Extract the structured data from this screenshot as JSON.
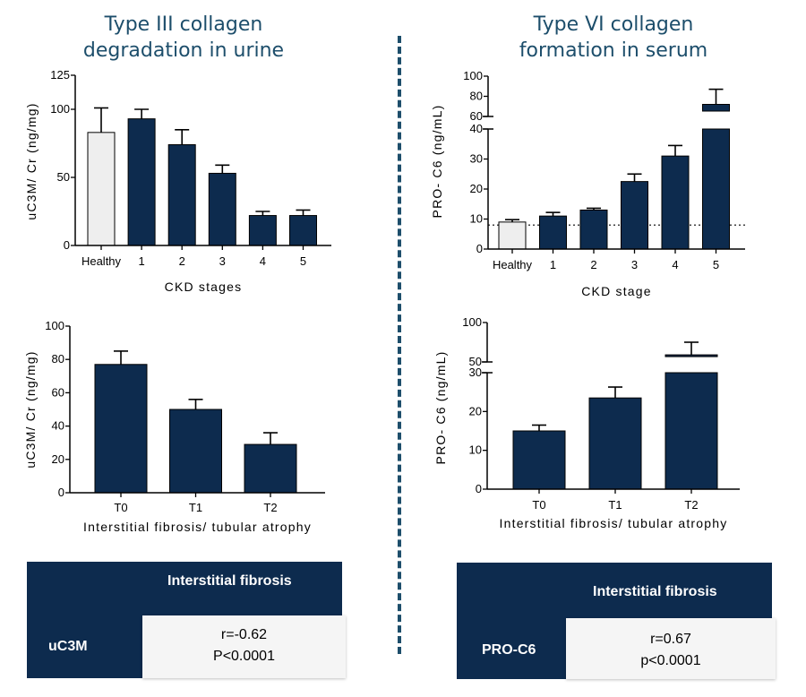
{
  "left_title": [
    "Type III collagen",
    "degradation in urine"
  ],
  "right_title": [
    "Type VI collagen",
    "formation in serum"
  ],
  "colors": {
    "navy": "#0d2b4e",
    "healthy": "#eeeeee",
    "title": "#1d4e6b"
  },
  "chart_data": [
    {
      "id": "uc3m_ckd",
      "type": "bar",
      "title": "",
      "ylabel": "uC3M/ Cr (ng/mg)",
      "xlabel": "CKD stages",
      "categories": [
        "Healthy",
        "1",
        "2",
        "3",
        "4",
        "5"
      ],
      "values": [
        83,
        93,
        74,
        53,
        22,
        22
      ],
      "errors": [
        18,
        7,
        11,
        6,
        3,
        4
      ],
      "ylim": [
        0,
        125
      ],
      "yticks": [
        0,
        50,
        100,
        125
      ],
      "highlight_first": true
    },
    {
      "id": "proc6_ckd",
      "type": "bar",
      "title": "",
      "ylabel": "PRO- C6 (ng/mL)",
      "xlabel": "CKD stage",
      "categories": [
        "Healthy",
        "1",
        "2",
        "3",
        "4",
        "5"
      ],
      "values": [
        9,
        11,
        13,
        22.5,
        31,
        72
      ],
      "errors": [
        0.8,
        1.2,
        0.6,
        2.5,
        3.5,
        15
      ],
      "ylim": [
        0,
        100
      ],
      "axis_break": {
        "lower": [
          0,
          40
        ],
        "upper": [
          60,
          100
        ]
      },
      "yticks_lower": [
        0,
        10,
        20,
        30,
        40
      ],
      "yticks_upper": [
        60,
        80,
        100
      ],
      "reference_line": 8,
      "highlight_first": true
    },
    {
      "id": "uc3m_fibrosis",
      "type": "bar",
      "title": "",
      "ylabel": "uC3M/ Cr (ng/mg)",
      "xlabel": "Interstitial fibrosis/ tubular atrophy",
      "categories": [
        "T0",
        "T1",
        "T2"
      ],
      "values": [
        77,
        50,
        29
      ],
      "errors": [
        8,
        6,
        7
      ],
      "ylim": [
        0,
        100
      ],
      "yticks": [
        0,
        20,
        40,
        60,
        80,
        100
      ]
    },
    {
      "id": "proc6_fibrosis",
      "type": "bar",
      "title": "",
      "ylabel": "PRO- C6 (ng/mL)",
      "xlabel": "Interstitial fibrosis/ tubular atrophy",
      "categories": [
        "T0",
        "T1",
        "T2"
      ],
      "values": [
        15,
        23.5,
        59
      ],
      "errors": [
        1.5,
        2.8,
        16
      ],
      "ylim": [
        0,
        100
      ],
      "axis_break": {
        "lower": [
          0,
          30
        ],
        "upper": [
          50,
          100
        ]
      },
      "yticks_lower": [
        0,
        10,
        20,
        30
      ],
      "yticks_upper": [
        50,
        100
      ]
    }
  ],
  "tables": [
    {
      "header": "Interstitial fibrosis",
      "row_label": "uC3M",
      "line1": "r=-0.62",
      "line2": "P<0.0001"
    },
    {
      "header": "Interstitial fibrosis",
      "row_label": "PRO-C6",
      "line1": "r=0.67",
      "line2": "p<0.0001"
    }
  ]
}
